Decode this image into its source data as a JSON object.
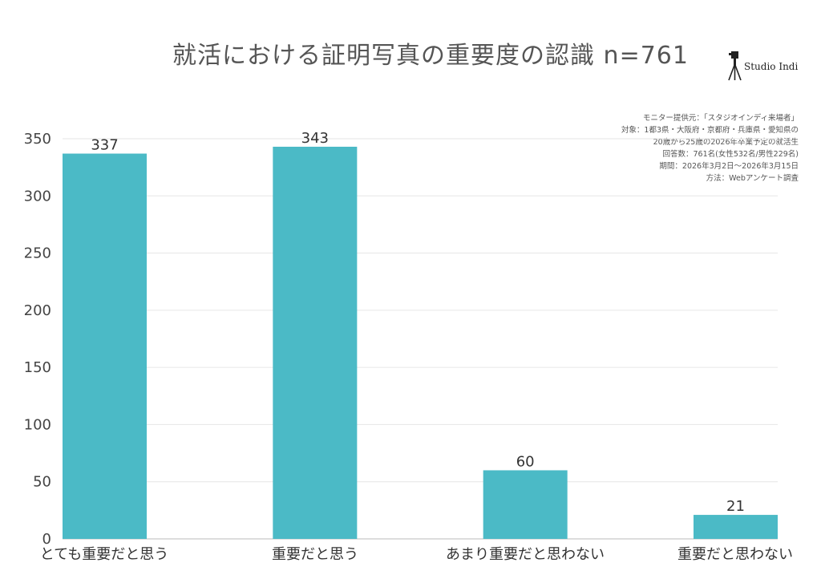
{
  "chart_data": {
    "type": "bar",
    "title": "就活における証明写真の重要度の認識 n=761",
    "categories": [
      "とても重要だと思う",
      "重要だと思う",
      "あまり重要だと思わない",
      "重要だと思わない"
    ],
    "values": [
      337,
      343,
      60,
      21
    ],
    "ylim": [
      0,
      350
    ],
    "yticks": [
      0,
      50,
      100,
      150,
      200,
      250,
      300,
      350
    ],
    "grid": true,
    "bar_color": "#4bbac6"
  },
  "logo": {
    "text": "Studio Indi",
    "icon": "camera-tripod-icon"
  },
  "notes": [
    "モニター提供元：「スタジオインディ来場者」",
    "対象：1都3県・大阪府・京都府・兵庫県・愛知県の",
    "20歳から25歳の2026年卒業予定の就活生",
    "回答数：761名(女性532名/男性229名)",
    "期間：2026年3月2日〜2026年3月15日",
    "方法：Webアンケート調査"
  ]
}
